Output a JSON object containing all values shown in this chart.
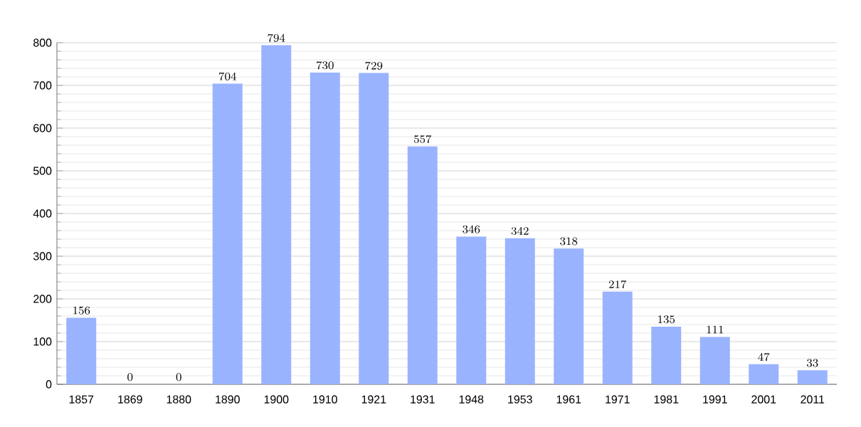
{
  "chart_data": {
    "type": "bar",
    "categories": [
      "1857",
      "1869",
      "1880",
      "1890",
      "1900",
      "1910",
      "1921",
      "1931",
      "1948",
      "1953",
      "1961",
      "1971",
      "1981",
      "1991",
      "2001",
      "2011"
    ],
    "values": [
      156,
      0,
      0,
      704,
      794,
      730,
      729,
      557,
      346,
      342,
      318,
      217,
      135,
      111,
      47,
      33
    ],
    "color": "#99b3ff",
    "ylim": [
      0,
      800
    ],
    "yticks": [
      0,
      100,
      200,
      300,
      400,
      500,
      600,
      700,
      800
    ],
    "grid": "y",
    "data_labels": true
  }
}
